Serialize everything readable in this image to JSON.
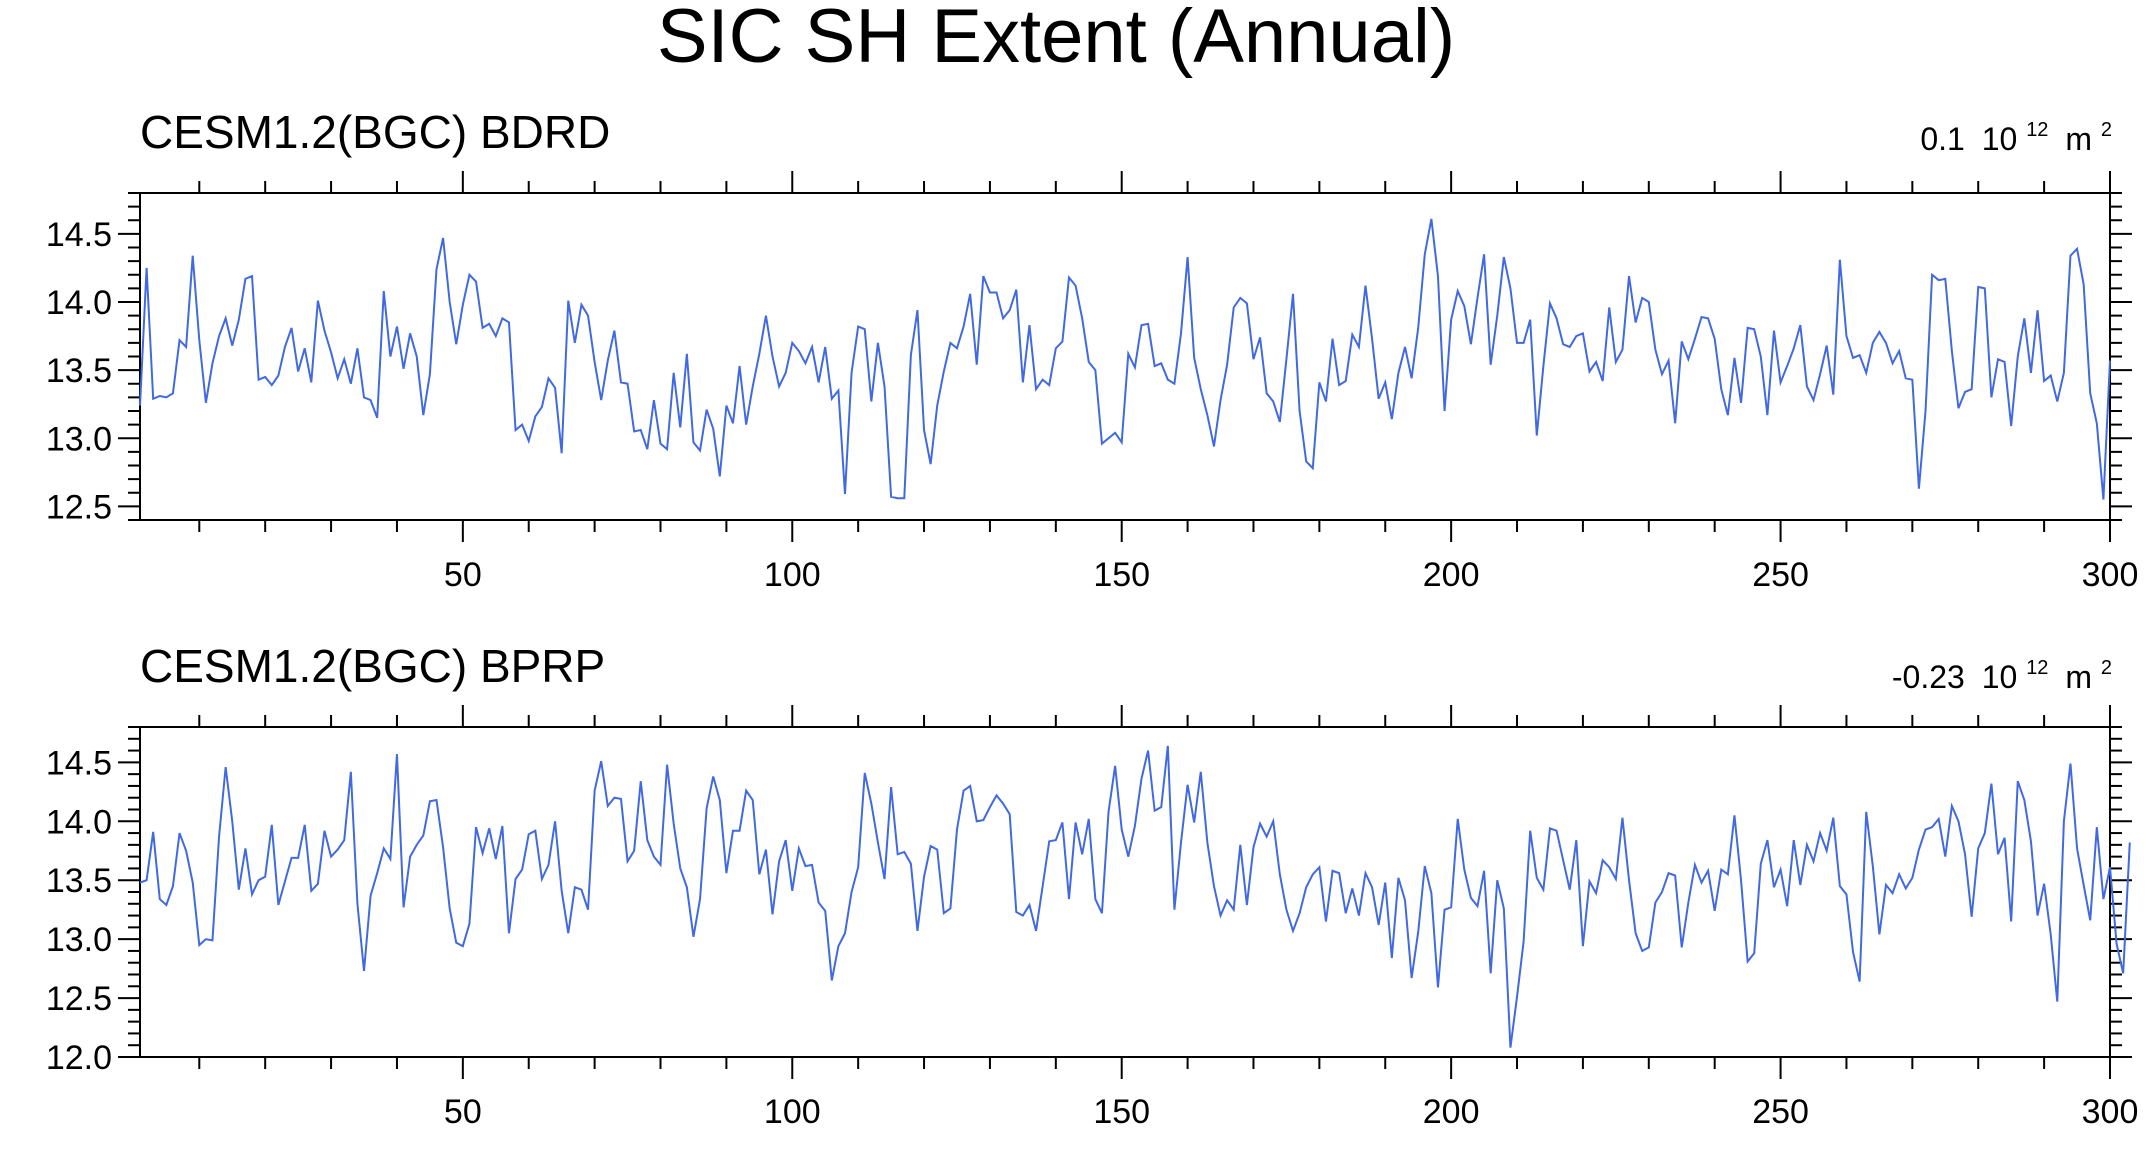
{
  "figure": {
    "title": "SIC SH Extent (Annual)"
  },
  "colors": {
    "series_line": "#4169e1",
    "axis": "#000000",
    "background": "#ffffff"
  },
  "chart_data": [
    {
      "type": "line",
      "title": "CESM1.2(BGC) BDRD",
      "annotation": {
        "value": "0.1",
        "unit_base": "10",
        "unit_exp": "12",
        "unit_tail": "m",
        "unit_tail_exp": "2"
      },
      "xlim": [
        1,
        300
      ],
      "ylim": [
        12.4,
        14.8
      ],
      "xticks": [
        50,
        100,
        150,
        200,
        250,
        300
      ],
      "yticks": [
        12.5,
        13.0,
        13.5,
        14.0,
        14.5
      ],
      "yticklabels": [
        "12.5",
        "13.0",
        "13.5",
        "14.0",
        "14.5"
      ],
      "grid": false,
      "series": [
        {
          "values": [
            13.24,
            14.25,
            13.29,
            13.31,
            13.3,
            13.33,
            13.72,
            13.67,
            14.34,
            13.72,
            13.26,
            13.55,
            13.75,
            13.88,
            13.68,
            13.87,
            14.17,
            14.19,
            13.43,
            13.45,
            13.39,
            13.46,
            13.67,
            13.81,
            13.49,
            13.66,
            13.41,
            14.01,
            13.79,
            13.63,
            13.44,
            13.58,
            13.4,
            13.66,
            13.3,
            13.28,
            13.15,
            14.08,
            13.6,
            13.82,
            13.51,
            13.77,
            13.6,
            13.17,
            13.47,
            14.24,
            14.47,
            14.0,
            13.69,
            13.98,
            14.2,
            14.15,
            13.81,
            13.84,
            13.75,
            13.88,
            13.85,
            13.06,
            13.1,
            12.98,
            13.16,
            13.23,
            13.44,
            13.37,
            12.89,
            14.01,
            13.7,
            13.98,
            13.9,
            13.56,
            13.28,
            13.57,
            13.79,
            13.41,
            13.4,
            13.05,
            13.06,
            12.92,
            13.28,
            12.96,
            12.92,
            13.48,
            13.08,
            13.62,
            12.97,
            12.91,
            13.21,
            13.07,
            12.72,
            13.24,
            13.11,
            13.53,
            13.1,
            13.38,
            13.62,
            13.9,
            13.6,
            13.38,
            13.48,
            13.7,
            13.64,
            13.55,
            13.67,
            13.41,
            13.67,
            13.29,
            13.35,
            12.59,
            13.48,
            13.82,
            13.8,
            13.27,
            13.7,
            13.38,
            12.57,
            12.56,
            12.56,
            13.61,
            13.94,
            13.06,
            12.81,
            13.24,
            13.49,
            13.7,
            13.66,
            13.82,
            14.06,
            13.54,
            14.19,
            14.07,
            14.07,
            13.88,
            13.94,
            14.09,
            13.41,
            13.83,
            13.36,
            13.43,
            13.39,
            13.66,
            13.71,
            14.18,
            14.12,
            13.88,
            13.56,
            13.5,
            12.96,
            13.0,
            13.04,
            12.97,
            13.62,
            13.52,
            13.83,
            13.84,
            13.53,
            13.55,
            13.43,
            13.4,
            13.77,
            14.33,
            13.59,
            13.36,
            13.17,
            12.94,
            13.28,
            13.54,
            13.96,
            14.03,
            13.99,
            13.58,
            13.74,
            13.33,
            13.27,
            13.12,
            13.58,
            14.06,
            13.2,
            12.83,
            12.78,
            13.41,
            13.27,
            13.73,
            13.39,
            13.42,
            13.76,
            13.67,
            14.12,
            13.73,
            13.29,
            13.41,
            13.14,
            13.48,
            13.67,
            13.44,
            13.81,
            14.35,
            14.61,
            14.19,
            13.2,
            13.87,
            14.08,
            13.97,
            13.69,
            14.03,
            14.35,
            13.54,
            13.9,
            14.33,
            14.1,
            13.7,
            13.7,
            13.87,
            13.02,
            13.53,
            13.99,
            13.88,
            13.69,
            13.67,
            13.75,
            13.77,
            13.49,
            13.56,
            13.42,
            13.96,
            13.56,
            13.65,
            14.19,
            13.85,
            14.03,
            14.0,
            13.65,
            13.47,
            13.57,
            13.11,
            13.71,
            13.58,
            13.73,
            13.89,
            13.88,
            13.73,
            13.36,
            13.17,
            13.59,
            13.26,
            13.81,
            13.8,
            13.6,
            13.17,
            13.79,
            13.41,
            13.53,
            13.66,
            13.83,
            13.38,
            13.28,
            13.47,
            13.68,
            13.32,
            14.31,
            13.75,
            13.59,
            13.61,
            13.48,
            13.7,
            13.78,
            13.7,
            13.55,
            13.64,
            13.44,
            13.43,
            12.63,
            13.2,
            14.2,
            14.16,
            14.17,
            13.64,
            13.22,
            13.34,
            13.36,
            14.11,
            14.1,
            13.3,
            13.58,
            13.56,
            13.09,
            13.6,
            13.88,
            13.48,
            13.94,
            13.42,
            13.46,
            13.27,
            13.48,
            14.34,
            14.39,
            14.13,
            13.33,
            13.11,
            12.55,
            13.57
          ]
        }
      ]
    },
    {
      "type": "line",
      "title": "CESM1.2(BGC) BPRP",
      "annotation": {
        "value": "-0.23",
        "unit_base": "10",
        "unit_exp": "12",
        "unit_tail": "m",
        "unit_tail_exp": "2"
      },
      "xlim": [
        1,
        300
      ],
      "ylim": [
        12.0,
        14.8
      ],
      "xticks": [
        50,
        100,
        150,
        200,
        250,
        300
      ],
      "yticks": [
        12.0,
        12.5,
        13.0,
        13.5,
        14.0,
        14.5
      ],
      "yticklabels": [
        "12.0",
        "12.5",
        "13.0",
        "13.5",
        "14.0",
        "14.5"
      ],
      "grid": false,
      "series": [
        {
          "values": [
            13.48,
            13.5,
            13.91,
            13.34,
            13.29,
            13.45,
            13.9,
            13.75,
            13.48,
            12.95,
            13.0,
            12.99,
            13.87,
            14.46,
            14.0,
            13.42,
            13.77,
            13.38,
            13.5,
            13.53,
            13.97,
            13.29,
            13.49,
            13.69,
            13.69,
            13.97,
            13.41,
            13.47,
            13.92,
            13.7,
            13.76,
            13.84,
            14.42,
            13.3,
            12.73,
            13.37,
            13.56,
            13.77,
            13.68,
            14.57,
            13.27,
            13.7,
            13.8,
            13.88,
            14.17,
            14.18,
            13.78,
            13.26,
            12.97,
            12.94,
            13.13,
            13.95,
            13.73,
            13.94,
            13.68,
            13.96,
            13.05,
            13.51,
            13.59,
            13.89,
            13.92,
            13.51,
            13.63,
            14.0,
            13.41,
            13.05,
            13.44,
            13.42,
            13.25,
            14.26,
            14.51,
            14.13,
            14.2,
            14.19,
            13.66,
            13.75,
            14.34,
            13.84,
            13.7,
            13.63,
            14.48,
            13.98,
            13.6,
            13.44,
            13.02,
            13.34,
            14.11,
            14.38,
            14.18,
            13.56,
            13.92,
            13.92,
            14.26,
            14.18,
            13.55,
            13.76,
            13.21,
            13.66,
            13.84,
            13.41,
            13.77,
            13.62,
            13.63,
            13.31,
            13.24,
            12.65,
            12.94,
            13.05,
            13.4,
            13.61,
            14.41,
            14.15,
            13.82,
            13.51,
            14.29,
            13.72,
            13.74,
            13.64,
            13.07,
            13.53,
            13.79,
            13.76,
            13.22,
            13.26,
            13.93,
            14.26,
            14.3,
            14.0,
            14.01,
            14.12,
            14.22,
            14.15,
            14.06,
            13.23,
            13.2,
            13.29,
            13.07,
            13.45,
            13.83,
            13.84,
            13.99,
            13.34,
            13.99,
            13.72,
            14.02,
            13.34,
            13.22,
            14.08,
            14.47,
            13.93,
            13.7,
            13.96,
            14.36,
            14.6,
            14.09,
            14.12,
            14.64,
            13.25,
            13.82,
            14.31,
            13.99,
            14.42,
            13.82,
            13.45,
            13.2,
            13.33,
            13.25,
            13.8,
            13.29,
            13.78,
            13.98,
            13.87,
            14.0,
            13.55,
            13.25,
            13.07,
            13.22,
            13.44,
            13.55,
            13.61,
            13.15,
            13.58,
            13.56,
            13.22,
            13.43,
            13.2,
            13.56,
            13.44,
            13.12,
            13.48,
            12.84,
            13.52,
            13.33,
            12.67,
            13.06,
            13.62,
            13.39,
            12.59,
            13.25,
            13.27,
            14.02,
            13.59,
            13.35,
            13.28,
            13.58,
            12.71,
            13.5,
            13.26,
            12.08,
            12.51,
            12.98,
            13.92,
            13.52,
            13.42,
            13.94,
            13.92,
            13.67,
            13.42,
            13.84,
            12.94,
            13.49,
            13.39,
            13.67,
            13.61,
            13.51,
            14.03,
            13.5,
            13.05,
            12.9,
            12.93,
            13.31,
            13.4,
            13.56,
            13.54,
            12.93,
            13.31,
            13.63,
            13.48,
            13.58,
            13.24,
            13.59,
            13.55,
            14.05,
            13.5,
            12.81,
            12.88,
            13.64,
            13.84,
            13.44,
            13.59,
            13.28,
            13.84,
            13.46,
            13.8,
            13.66,
            13.9,
            13.75,
            14.03,
            13.45,
            13.38,
            12.89,
            12.64,
            14.08,
            13.62,
            13.04,
            13.46,
            13.39,
            13.55,
            13.43,
            13.52,
            13.76,
            13.93,
            13.95,
            14.02,
            13.7,
            14.13,
            14.0,
            13.72,
            13.19,
            13.77,
            13.9,
            14.32,
            13.72,
            13.86,
            13.15,
            14.34,
            14.18,
            13.83,
            13.2,
            13.47,
            13.04,
            12.47,
            14.0,
            14.49,
            13.77,
            13.46,
            13.16,
            13.95,
            13.34,
            13.61,
            12.96,
            12.71,
            13.82
          ]
        }
      ]
    }
  ]
}
